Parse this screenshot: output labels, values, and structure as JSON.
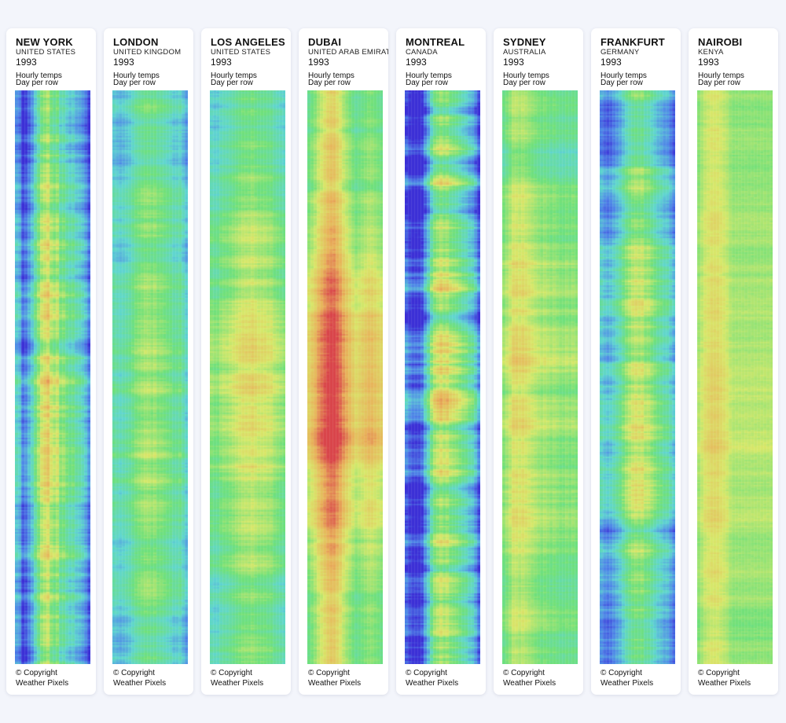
{
  "chart_data": {
    "type": "heatmap",
    "description_line1": "Hourly temps",
    "description_line2": "Day per row",
    "copyright_line1": "© Copyright",
    "copyright_line2": "Weather Pixels",
    "x": "hour of day (0-23)",
    "y": "day of year (1-365)",
    "colormap": [
      "#3b2fd6",
      "#4f86e8",
      "#5fd6d0",
      "#6fe07a",
      "#d8e86a",
      "#e8b25a",
      "#d9444a"
    ],
    "panels": [
      {
        "city": "NEW YORK",
        "country": "UNITED STATES",
        "year": "1993",
        "profile": [
          0.3,
          0.26,
          0.1,
          0.14,
          0.22,
          0.3,
          0.42,
          0.52,
          0.62,
          0.66,
          0.7,
          0.6,
          0.56,
          0.6,
          0.48,
          0.5,
          0.44,
          0.4,
          0.42,
          0.36,
          0.34,
          0.3,
          0.24,
          0.14
        ],
        "amp": 0.06,
        "noise": 0.1
      },
      {
        "city": "LONDON",
        "country": "UNITED KINGDOM",
        "year": "1993",
        "profile": [
          0.38,
          0.36,
          0.34,
          0.36,
          0.38,
          0.4,
          0.44,
          0.48,
          0.5,
          0.52,
          0.54,
          0.54,
          0.52,
          0.54,
          0.5,
          0.5,
          0.48,
          0.46,
          0.44,
          0.4,
          0.4,
          0.42,
          0.36,
          0.3
        ],
        "amp": 0.06,
        "noise": 0.07
      },
      {
        "city": "LOS ANGELES",
        "country": "UNITED STATES",
        "year": "1993",
        "profile": [
          0.46,
          0.44,
          0.44,
          0.48,
          0.5,
          0.5,
          0.52,
          0.54,
          0.56,
          0.58,
          0.6,
          0.6,
          0.6,
          0.62,
          0.6,
          0.58,
          0.58,
          0.58,
          0.56,
          0.56,
          0.52,
          0.5,
          0.48,
          0.46
        ],
        "amp": 0.11,
        "noise": 0.07
      },
      {
        "city": "DUBAI",
        "country": "UNITED ARAB EMIRATES",
        "year": "1993",
        "profile": [
          0.6,
          0.64,
          0.68,
          0.74,
          0.78,
          0.82,
          0.86,
          0.88,
          0.88,
          0.84,
          0.8,
          0.74,
          0.7,
          0.66,
          0.62,
          0.58,
          0.6,
          0.62,
          0.64,
          0.66,
          0.66,
          0.64,
          0.62,
          0.6
        ],
        "amp": 0.14,
        "noise": 0.05
      },
      {
        "city": "MONTREAL",
        "country": "CANADA",
        "year": "1993",
        "profile": [
          0.12,
          0.06,
          0.02,
          0.02,
          0.02,
          0.06,
          0.2,
          0.3,
          0.44,
          0.54,
          0.58,
          0.62,
          0.58,
          0.6,
          0.54,
          0.52,
          0.5,
          0.46,
          0.42,
          0.4,
          0.34,
          0.32,
          0.24,
          0.12
        ],
        "amp": 0.06,
        "noise": 0.13
      },
      {
        "city": "SYDNEY",
        "country": "AUSTRALIA",
        "year": "1993",
        "profile": [
          0.52,
          0.56,
          0.6,
          0.66,
          0.66,
          0.64,
          0.66,
          0.64,
          0.62,
          0.6,
          0.58,
          0.56,
          0.54,
          0.56,
          0.54,
          0.52,
          0.54,
          0.52,
          0.5,
          0.5,
          0.52,
          0.5,
          0.52,
          0.5
        ],
        "amp": 0.07,
        "noise": 0.06
      },
      {
        "city": "FRANKFURT",
        "country": "GERMANY",
        "year": "1993",
        "profile": [
          0.3,
          0.26,
          0.24,
          0.26,
          0.3,
          0.34,
          0.38,
          0.44,
          0.5,
          0.54,
          0.58,
          0.6,
          0.58,
          0.6,
          0.54,
          0.54,
          0.5,
          0.46,
          0.42,
          0.4,
          0.36,
          0.36,
          0.3,
          0.24
        ],
        "amp": 0.06,
        "noise": 0.1
      },
      {
        "city": "NAIROBI",
        "country": "KENYA",
        "year": "1993",
        "profile": [
          0.58,
          0.62,
          0.66,
          0.68,
          0.7,
          0.7,
          0.7,
          0.68,
          0.66,
          0.64,
          0.6,
          0.58,
          0.58,
          0.58,
          0.58,
          0.58,
          0.58,
          0.58,
          0.58,
          0.58,
          0.58,
          0.58,
          0.58,
          0.58
        ],
        "amp": 0.04,
        "noise": 0.04
      }
    ]
  }
}
